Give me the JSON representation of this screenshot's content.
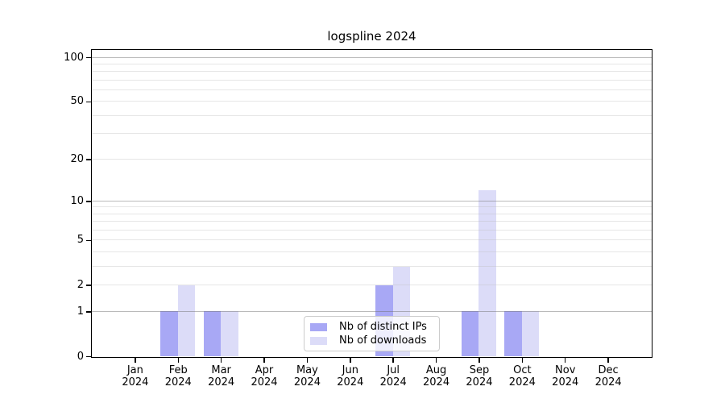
{
  "title": "logspline 2024",
  "chart_data": {
    "type": "bar",
    "title": "logspline 2024",
    "categories": [
      "Jan",
      "Feb",
      "Mar",
      "Apr",
      "May",
      "Jun",
      "Jul",
      "Aug",
      "Sep",
      "Oct",
      "Nov",
      "Dec"
    ],
    "x_year_label": "2024",
    "series": [
      {
        "name": "Nb of distinct IPs",
        "color": "#a8a8f5",
        "values": [
          0,
          1,
          1,
          0,
          0,
          0,
          2,
          0,
          1,
          1,
          0,
          0
        ]
      },
      {
        "name": "Nb of downloads",
        "color": "#dcdcf8",
        "values": [
          0,
          2,
          1,
          0,
          0,
          0,
          3,
          0,
          12,
          1,
          0,
          0
        ]
      }
    ],
    "y_scale": "log10(1+x)",
    "ylim": [
      0,
      112
    ],
    "y_ticks": [
      0,
      1,
      2,
      5,
      10,
      20,
      50,
      100
    ],
    "y_gridlines_major": [
      1,
      10,
      100
    ],
    "y_gridlines_minor": [
      2,
      3,
      4,
      5,
      6,
      7,
      8,
      9,
      20,
      30,
      40,
      50,
      60,
      70,
      80,
      90
    ],
    "grid": "on",
    "legend_position": "inside-bottom-center",
    "xlabel": "",
    "ylabel": ""
  }
}
